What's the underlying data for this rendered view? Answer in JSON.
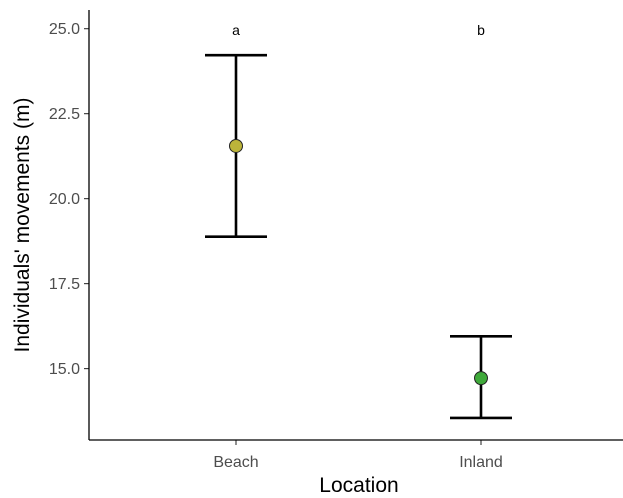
{
  "chart_data": {
    "type": "scatter",
    "title": "",
    "xlabel": "Location",
    "ylabel": "Individuals' movements (m)",
    "categories": [
      "Beach",
      "Inland"
    ],
    "ylim": [
      12.9,
      25.55
    ],
    "yticks": [
      15.0,
      17.5,
      20.0,
      22.5,
      25.0
    ],
    "ytick_labels": [
      "15.0",
      "17.5",
      "20.0",
      "22.5",
      "25.0"
    ],
    "points": [
      {
        "category": "Beach",
        "mean": 21.55,
        "lower": 18.88,
        "upper": 24.22,
        "label": "a",
        "color": "#bcb43a"
      },
      {
        "category": "Inland",
        "mean": 14.72,
        "lower": 13.55,
        "upper": 15.95,
        "label": "b",
        "color": "#3fa93a"
      }
    ],
    "grid": false,
    "legend": "none"
  }
}
